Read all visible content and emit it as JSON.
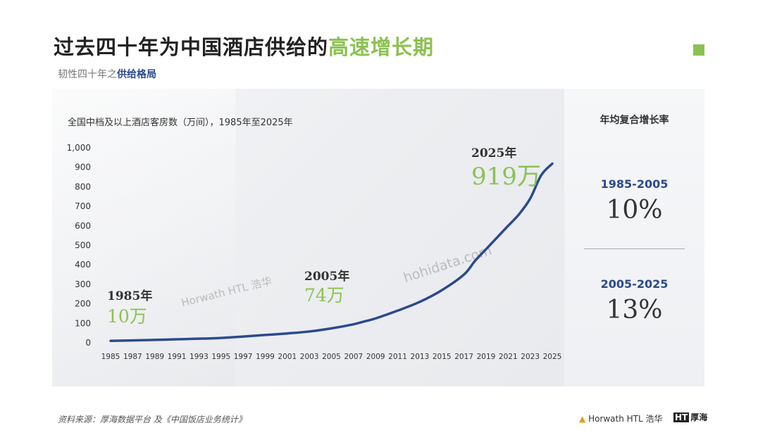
{
  "header": {
    "title_main": "过去四十年为中国酒店供给的",
    "title_highlight": "高速增长期",
    "subtitle_main": "韧性四十年之",
    "subtitle_highlight": "供给格局"
  },
  "colors": {
    "accent_green": "#8cc152",
    "accent_blue": "#2b4a8c",
    "line": "#2b4a8c"
  },
  "chart_data": {
    "type": "line",
    "title": "全国中档及以上酒店客房数（万间），1985年至2025年",
    "xlabel": "",
    "ylabel": "",
    "ylim": [
      0,
      1000
    ],
    "yticks": [
      "0",
      "100",
      "200",
      "300",
      "400",
      "500",
      "600",
      "700",
      "800",
      "900",
      "1,000"
    ],
    "xticks": [
      "1985",
      "1987",
      "1989",
      "1991",
      "1993",
      "1995",
      "1997",
      "1999",
      "2001",
      "2003",
      "2005",
      "2007",
      "2009",
      "2011",
      "2013",
      "2015",
      "2017",
      "2019",
      "2021",
      "2023",
      "2025"
    ],
    "x": [
      1985,
      1987,
      1989,
      1991,
      1993,
      1995,
      1997,
      1999,
      2001,
      2003,
      2005,
      2007,
      2008,
      2009,
      2011,
      2013,
      2015,
      2017,
      2018,
      2019,
      2020,
      2021,
      2022,
      2023,
      2024,
      2025
    ],
    "values": [
      10,
      12,
      15,
      18,
      21,
      25,
      32,
      40,
      48,
      58,
      74,
      95,
      110,
      125,
      165,
      210,
      270,
      350,
      420,
      480,
      540,
      600,
      660,
      740,
      860,
      919
    ],
    "grid": false,
    "annotations": [
      {
        "year": "1985年",
        "value": "10万"
      },
      {
        "year": "2005年",
        "value": "74万"
      },
      {
        "year": "2025年",
        "value": "919万"
      }
    ]
  },
  "cagr": {
    "heading": "年均复合增长率",
    "items": [
      {
        "period": "1985-2005",
        "rate": "10%"
      },
      {
        "period": "2005-2025",
        "rate": "13%"
      }
    ]
  },
  "watermarks": {
    "horwath": "Horwath HTL 浩华",
    "hohidata": "hohidata.com"
  },
  "footer": {
    "source": "资料来源：厚海数据平台 及《中国饭店业务统计》",
    "logo_horwath": "Horwath HTL 浩华",
    "logo_hohai_mark": "HT",
    "logo_hohai": "厚海"
  }
}
